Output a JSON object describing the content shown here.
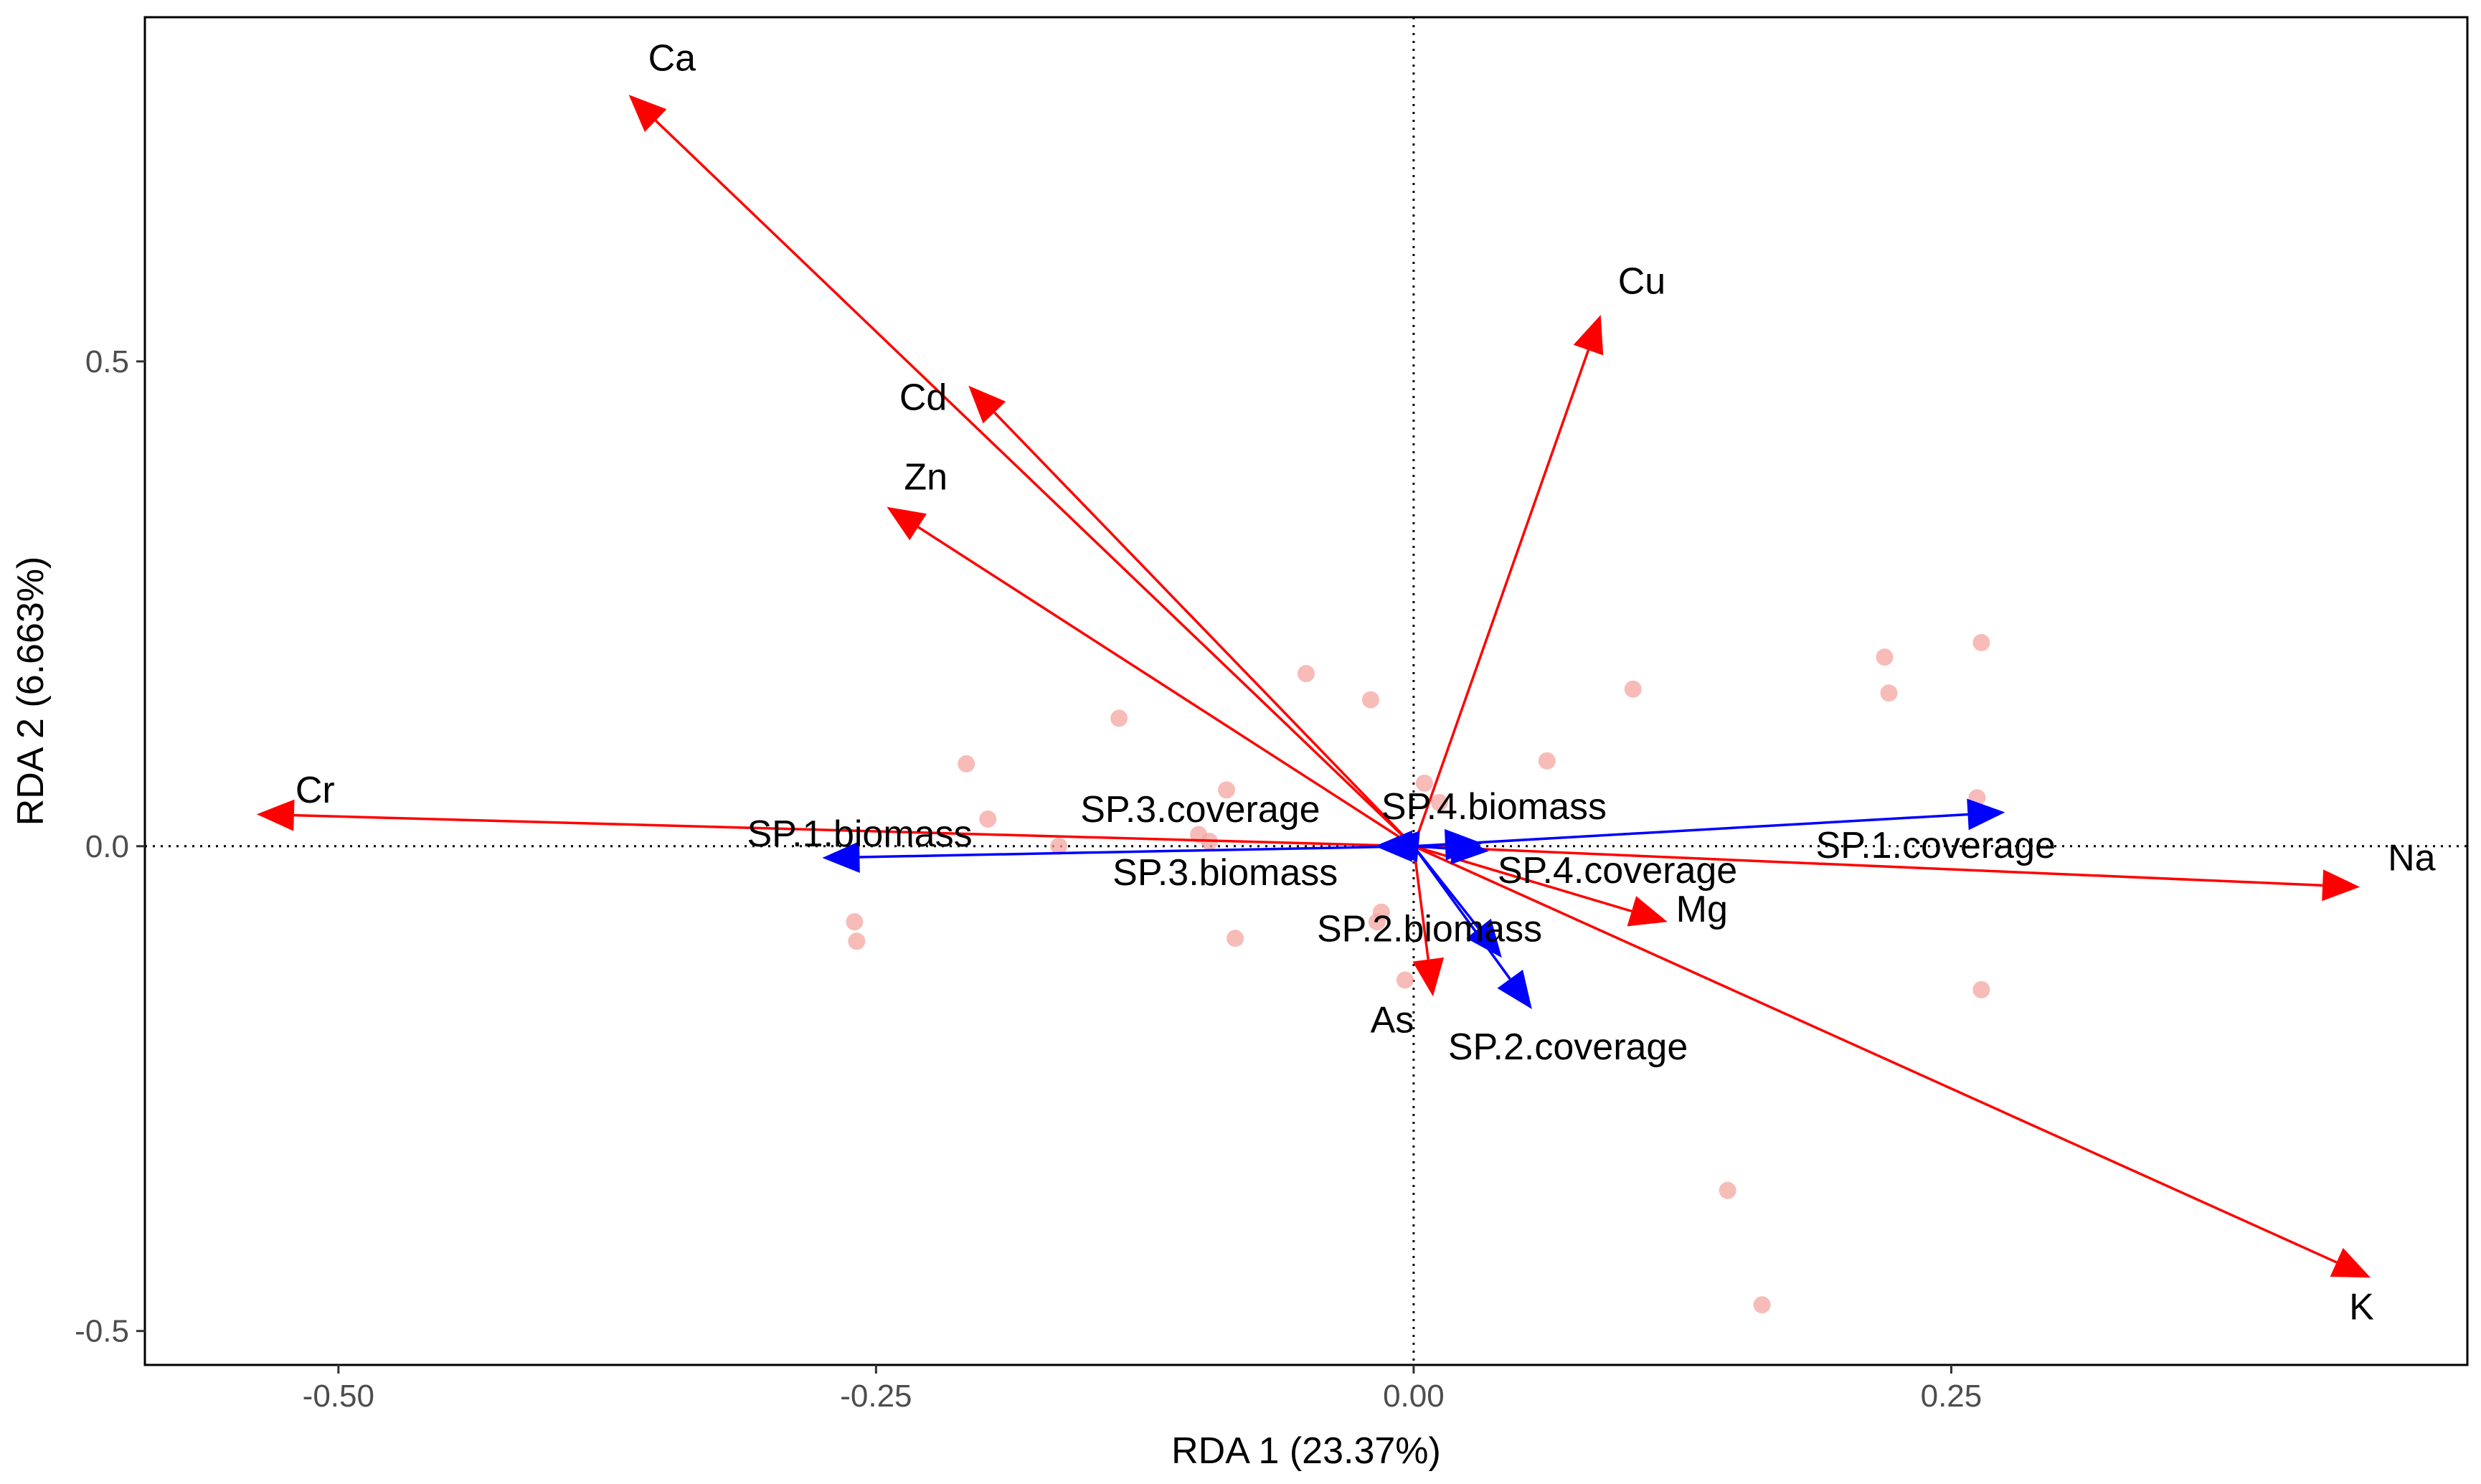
{
  "chart_data": {
    "type": "scatter",
    "subtype": "rda-biplot",
    "xlabel": "RDA 1 (23.37%)",
    "ylabel": "RDA 2 (6.663%)",
    "xlim": [
      -0.59,
      0.49
    ],
    "ylim": [
      -0.535,
      0.855
    ],
    "x_ticks": [
      {
        "value": -0.5,
        "label": "-0.50"
      },
      {
        "value": -0.25,
        "label": "-0.25"
      },
      {
        "value": 0.0,
        "label": "0.00"
      },
      {
        "value": 0.25,
        "label": "0.25"
      }
    ],
    "y_ticks": [
      {
        "value": 0.5,
        "label": "0.5"
      },
      {
        "value": 0.0,
        "label": "0.0"
      },
      {
        "value": -0.5,
        "label": "-0.5"
      }
    ],
    "reference_lines": {
      "x": 0.0,
      "y": 0.0
    },
    "colors": {
      "environment_vector": "#ff0000",
      "species_vector": "#0000ff",
      "site_point": "#f4a6a0"
    },
    "sites": [
      {
        "x": -0.208,
        "y": 0.085
      },
      {
        "x": -0.198,
        "y": 0.028
      },
      {
        "x": -0.137,
        "y": 0.132
      },
      {
        "x": -0.05,
        "y": 0.178
      },
      {
        "x": -0.02,
        "y": 0.151
      },
      {
        "x": -0.087,
        "y": 0.058
      },
      {
        "x": -0.26,
        "y": -0.078
      },
      {
        "x": -0.259,
        "y": -0.098
      },
      {
        "x": -0.165,
        "y": 0.0
      },
      {
        "x": -0.1,
        "y": 0.012
      },
      {
        "x": -0.095,
        "y": 0.005
      },
      {
        "x": -0.083,
        "y": -0.095
      },
      {
        "x": -0.015,
        "y": -0.068
      },
      {
        "x": -0.017,
        "y": -0.078
      },
      {
        "x": -0.004,
        "y": -0.138
      },
      {
        "x": 0.005,
        "y": 0.065
      },
      {
        "x": 0.012,
        "y": 0.045
      },
      {
        "x": 0.062,
        "y": 0.088
      },
      {
        "x": 0.102,
        "y": 0.162
      },
      {
        "x": 0.219,
        "y": 0.195
      },
      {
        "x": 0.221,
        "y": 0.158
      },
      {
        "x": 0.264,
        "y": 0.21
      },
      {
        "x": 0.262,
        "y": 0.05
      },
      {
        "x": 0.264,
        "y": -0.148
      },
      {
        "x": 0.146,
        "y": -0.355
      },
      {
        "x": 0.162,
        "y": -0.473
      }
    ],
    "environment_vectors": [
      {
        "name": "Ca",
        "x": -0.365,
        "y": 0.775,
        "label_x": -0.356,
        "label_y": 0.8,
        "anchor": "start"
      },
      {
        "name": "Cu",
        "x": 0.087,
        "y": 0.548,
        "label_x": 0.095,
        "label_y": 0.57,
        "anchor": "start"
      },
      {
        "name": "Cd",
        "x": -0.207,
        "y": 0.475,
        "label_x": -0.217,
        "label_y": 0.45,
        "anchor": "end"
      },
      {
        "name": "Zn",
        "x": -0.245,
        "y": 0.35,
        "label_x": -0.237,
        "label_y": 0.368,
        "anchor": "start"
      },
      {
        "name": "Cr",
        "x": -0.538,
        "y": 0.033,
        "label_x": -0.52,
        "label_y": 0.045,
        "anchor": "start"
      },
      {
        "name": "Na",
        "x": 0.44,
        "y": -0.042,
        "label_x": 0.453,
        "label_y": -0.025,
        "anchor": "start"
      },
      {
        "name": "K",
        "x": 0.445,
        "y": -0.445,
        "label_x": 0.435,
        "label_y": -0.488,
        "anchor": "start"
      },
      {
        "name": "Mg",
        "x": 0.118,
        "y": -0.078,
        "label_x": 0.122,
        "label_y": -0.078,
        "anchor": "start"
      },
      {
        "name": "As",
        "x": 0.009,
        "y": -0.155,
        "label_x": -0.01,
        "label_y": -0.192,
        "anchor": "middle"
      }
    ],
    "species_vectors": [
      {
        "name": "SP.1.biomass",
        "x": -0.275,
        "y": -0.012,
        "label_x": -0.31,
        "label_y": 0.0,
        "anchor": "start"
      },
      {
        "name": "SP.1.coverage",
        "x": 0.275,
        "y": 0.035,
        "label_x": 0.187,
        "label_y": -0.012,
        "anchor": "start"
      },
      {
        "name": "SP.2.biomass",
        "x": 0.041,
        "y": -0.115,
        "label_x": -0.045,
        "label_y": -0.098,
        "anchor": "start"
      },
      {
        "name": "SP.2.coverage",
        "x": 0.055,
        "y": -0.168,
        "label_x": 0.016,
        "label_y": -0.22,
        "anchor": "start"
      },
      {
        "name": "SP.3.biomass",
        "x": -0.018,
        "y": 0.0,
        "label_x": -0.14,
        "label_y": -0.04,
        "anchor": "start"
      },
      {
        "name": "SP.3.coverage",
        "x": -0.015,
        "y": 0.003,
        "label_x": -0.155,
        "label_y": 0.025,
        "anchor": "start"
      },
      {
        "name": "SP.4.biomass",
        "x": 0.032,
        "y": 0.003,
        "label_x": -0.015,
        "label_y": 0.028,
        "anchor": "start"
      },
      {
        "name": "SP.4.coverage",
        "x": 0.035,
        "y": -0.005,
        "label_x": 0.039,
        "label_y": -0.038,
        "anchor": "start"
      }
    ]
  }
}
